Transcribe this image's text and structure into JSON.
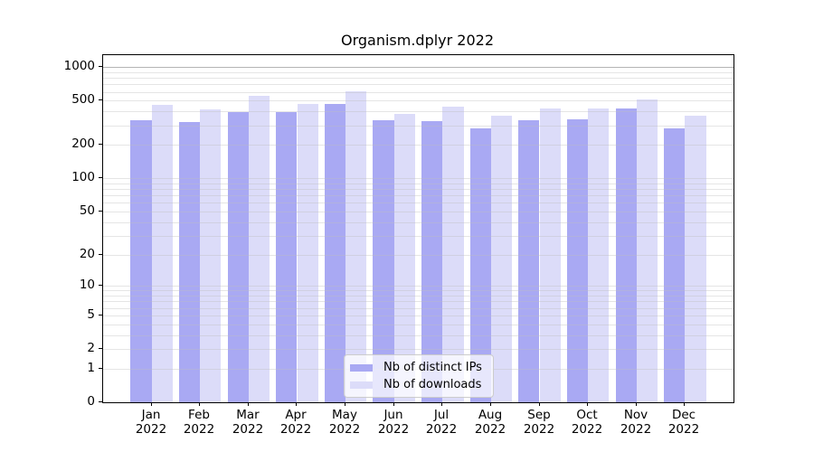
{
  "chart_data": {
    "type": "bar",
    "title": "Organism.dplyr 2022",
    "categories": [
      "Jan",
      "Feb",
      "Mar",
      "Apr",
      "May",
      "Jun",
      "Jul",
      "Aug",
      "Sep",
      "Oct",
      "Nov",
      "Dec"
    ],
    "year_label": "2022",
    "series": [
      {
        "name": "Nb of distinct IPs",
        "color": "#a9a9f3",
        "values": [
          335,
          320,
          395,
          395,
          465,
          335,
          325,
          280,
          335,
          340,
          430,
          285
        ]
      },
      {
        "name": "Nb of downloads",
        "color": "#dcdcf9",
        "values": [
          455,
          415,
          555,
          465,
          610,
          380,
          445,
          370,
          430,
          430,
          510,
          365
        ]
      }
    ],
    "y_ticks": [
      1000,
      500,
      200,
      100,
      50,
      20,
      10,
      5,
      2,
      1,
      0
    ],
    "y_scale": "log10(v+1)",
    "ylim": [
      0,
      1280
    ],
    "grid": "horizontal-log-minor",
    "legend_position": "lower-center"
  }
}
